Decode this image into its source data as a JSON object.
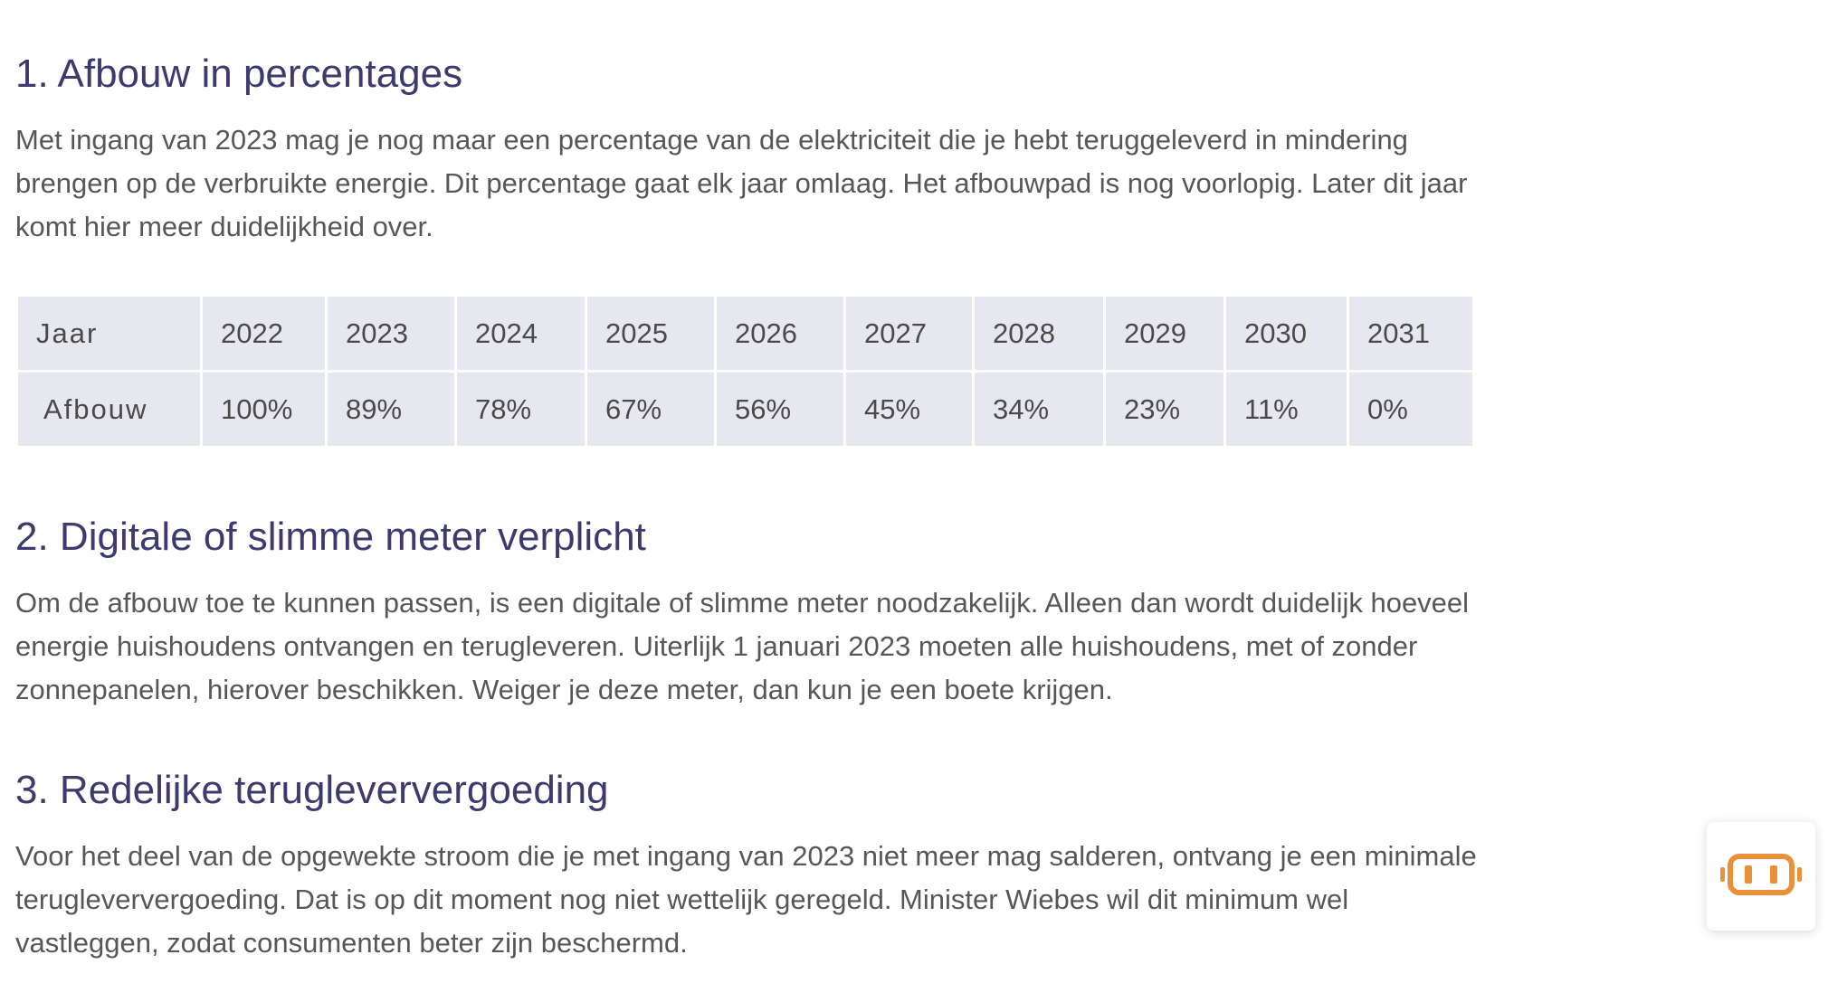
{
  "sections": [
    {
      "heading": "1. Afbouw in percentages",
      "body": "Met ingang van 2023 mag je nog maar een percentage van de elektriciteit die je hebt teruggeleverd in mindering brengen op de verbruikte energie. Dit percentage gaat elk jaar omlaag. Het afbouwpad is nog voorlopig. Later dit jaar komt hier meer duidelijkheid over."
    },
    {
      "heading": "2. Digitale of slimme meter verplicht",
      "body": "Om de afbouw toe te kunnen passen, is een digitale of slimme meter noodzakelijk. Alleen dan wordt duidelijk hoeveel energie huishoudens ontvangen en terugleveren. Uiterlijk 1 januari 2023 moeten alle huishoudens, met of zonder zonnepanelen, hierover beschikken. Weiger je deze meter, dan kun je een boete krijgen."
    },
    {
      "heading": "3. Redelijke terugleververgoeding",
      "body": "Voor het deel van de opgewekte stroom die je met ingang van 2023 niet meer mag salderen, ontvang je een minimale terugleververgoeding. Dat is op dit moment nog niet wettelijk geregeld. Minister Wiebes wil dit minimum wel vastleggen, zodat consumenten beter zijn beschermd."
    }
  ],
  "table": {
    "rows": [
      {
        "label": "Jaar",
        "cells": [
          "2022",
          "2023",
          "2024",
          "2025",
          "2026",
          "2027",
          "2028",
          "2029",
          "2030",
          "2031"
        ]
      },
      {
        "label": "Afbouw",
        "cells": [
          "100%",
          "89%",
          "78%",
          "67%",
          "56%",
          "45%",
          "34%",
          "23%",
          "11%",
          "0%"
        ]
      }
    ]
  },
  "widget": {
    "icon": "battery-icon",
    "accent_color": "#e8913a"
  },
  "colors": {
    "heading": "#3f3a6e",
    "body_text": "#575757",
    "table_bg": "#e7e7ef"
  }
}
